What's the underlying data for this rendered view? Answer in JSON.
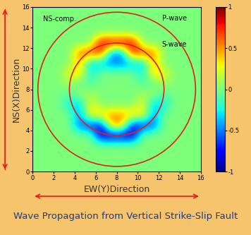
{
  "chart_data": {
    "type": "heatmap",
    "annotation": "NS-comp.",
    "xlabel": "EW(Y)Direction",
    "ylabel": "NS(X)Direction",
    "caption": "Wave Propagation from Vertical Strike-Slip Fault",
    "xlim": [
      0,
      16
    ],
    "ylim": [
      0,
      16
    ],
    "xticks": [
      0,
      2,
      4,
      6,
      8,
      10,
      12,
      14,
      16
    ],
    "yticks": [
      0,
      2,
      4,
      6,
      8,
      10,
      12,
      14,
      16
    ],
    "center": [
      8,
      8
    ],
    "wavefronts": [
      {
        "name": "P-wave",
        "radius": 7.5,
        "color": "#e0201a"
      },
      {
        "name": "S-wave",
        "radius": 4.5,
        "color": "#e0201a"
      }
    ],
    "colorbar_range": [
      -1,
      1
    ],
    "colorbar_ticks": [
      -1,
      -0.5,
      0,
      0.5,
      1
    ],
    "cells": [
      [
        0,
        0,
        0,
        0,
        0,
        0,
        0,
        0,
        0,
        0,
        0,
        0,
        0,
        0,
        0,
        0
      ],
      [
        0,
        0,
        0,
        0,
        0,
        0,
        0,
        0,
        0,
        0,
        0,
        0,
        0,
        0,
        0,
        0
      ],
      [
        0,
        0,
        0,
        0,
        0,
        0,
        0,
        0,
        0,
        0,
        0,
        0,
        0,
        0,
        0,
        0
      ],
      [
        0,
        0,
        0,
        0,
        0,
        0,
        -0.9,
        -0.9,
        -0.9,
        -0.9,
        0,
        0,
        0,
        0,
        0,
        0
      ],
      [
        0,
        0,
        0,
        0,
        -0.6,
        -0.7,
        -0.8,
        0.5,
        0.5,
        -0.8,
        -0.7,
        -0.6,
        0,
        0,
        0,
        0
      ],
      [
        0,
        0,
        0,
        0,
        -0.5,
        0.4,
        0.4,
        0.5,
        0.5,
        0.4,
        0.4,
        -0.5,
        0,
        0,
        0,
        0
      ],
      [
        0,
        0,
        0,
        -0.3,
        -0.4,
        0.3,
        0,
        0,
        0,
        0,
        0.3,
        -0.4,
        -0.3,
        0,
        0,
        0
      ],
      [
        0,
        0,
        0,
        -0.1,
        0.1,
        0.1,
        0,
        0,
        0,
        0,
        0.1,
        0.1,
        -0.1,
        0,
        0,
        0
      ],
      [
        0,
        0,
        0,
        0.1,
        -0.1,
        -0.1,
        0,
        0,
        0,
        0,
        -0.1,
        -0.1,
        0.1,
        0,
        0,
        0
      ],
      [
        0,
        0,
        0,
        0.3,
        0.4,
        -0.3,
        0,
        0,
        0,
        0,
        -0.3,
        0.4,
        0.3,
        0,
        0,
        0
      ],
      [
        0,
        0,
        0,
        0,
        0.5,
        -0.4,
        -0.4,
        -0.5,
        -0.5,
        -0.4,
        -0.4,
        0.5,
        0,
        0,
        0,
        0
      ],
      [
        0,
        0,
        0,
        0,
        0.6,
        0.7,
        0.8,
        -0.5,
        -0.5,
        0.8,
        0.7,
        0.6,
        0,
        0,
        0,
        0
      ],
      [
        0,
        0,
        0,
        0,
        0,
        0,
        0.9,
        0.9,
        0.9,
        0.9,
        0,
        0,
        0,
        0,
        0,
        0
      ],
      [
        0,
        0,
        0,
        0,
        0,
        0,
        0,
        0,
        0,
        0,
        0,
        0,
        0,
        0,
        0,
        0
      ],
      [
        0,
        0,
        0,
        0,
        0,
        0,
        0,
        0,
        0,
        0,
        0,
        0,
        0,
        0,
        0,
        0
      ],
      [
        0,
        0,
        0,
        0,
        0,
        0,
        0,
        0,
        0,
        0,
        0,
        0,
        0,
        0,
        0,
        0
      ]
    ]
  }
}
